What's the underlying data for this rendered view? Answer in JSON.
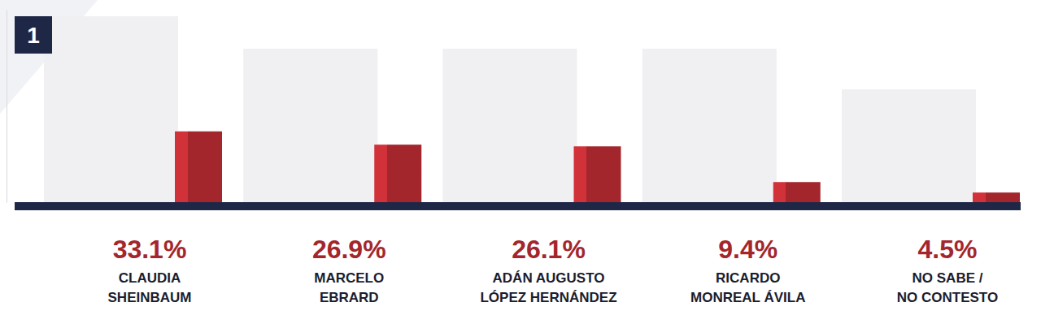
{
  "chart_data": {
    "type": "bar",
    "annotations": [
      "1"
    ],
    "categories": [
      "CLAUDIA\nSHEINBAUM",
      "MARCELO\nEBRARD",
      "ADÁN AUGUSTO\nLÓPEZ HERNÁNDEZ",
      "RICARDO\nMONREAL ÁVILA",
      "NO SABE /\nNO CONTESTO"
    ],
    "values": [
      33.1,
      26.9,
      26.1,
      9.4,
      4.5
    ],
    "value_labels": [
      "33.1%",
      "26.9%",
      "26.1%",
      "9.4%",
      "4.5%"
    ],
    "color": "#a3262c",
    "ylim": [
      0,
      90
    ],
    "data_labels": true,
    "tick_labels": false,
    "grid": false
  }
}
